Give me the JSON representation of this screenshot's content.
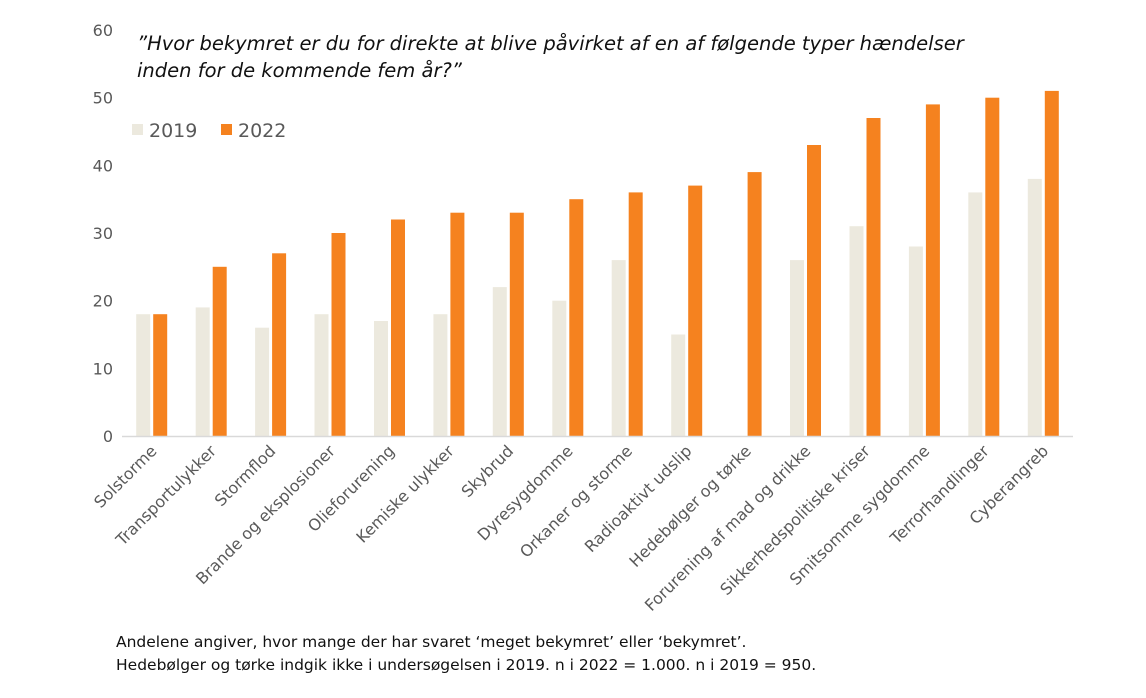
{
  "chart_data": {
    "type": "bar",
    "title_lines": [
      "”Hvor bekymret er du for direkte at blive påvirket af en af følgende typer hændelser",
      "inden for de kommende fem år?”"
    ],
    "categories": [
      "Solstorme",
      "Transportulykker",
      "Stormflod",
      "Brande og eksplosioner",
      "Olieforurening",
      "Kemiske ulykker",
      "Skybrud",
      "Dyresygdomme",
      "Orkaner og storme",
      "Radioaktivt udslip",
      "Hedebølger og tørke",
      "Forurening af mad og drikke",
      "Sikkerhedspolitiske kriser",
      "Smitsomme sygdomme",
      "Terrorhandlinger",
      "Cyberangreb"
    ],
    "series": [
      {
        "name": "2019",
        "color": "#ECE9DE",
        "values": [
          18,
          19,
          16,
          18,
          17,
          18,
          22,
          20,
          26,
          15,
          null,
          26,
          31,
          28,
          36,
          38
        ]
      },
      {
        "name": "2022",
        "color": "#F5821F",
        "values": [
          18,
          25,
          27,
          30,
          32,
          33,
          33,
          35,
          36,
          37,
          39,
          43,
          47,
          49,
          50,
          51
        ]
      }
    ],
    "ylim": [
      0,
      60
    ],
    "yticks": [
      "0",
      "10",
      "20",
      "30",
      "40",
      "50",
      "60"
    ],
    "grid": false,
    "legend_position": "top-left"
  },
  "footnotes": [
    "Andelene angiver, hvor mange der har svaret ‘meget bekymret’ eller ‘bekymret’.",
    "Hedebølger og tørke indgik ikke i undersøgelsen i 2019. n i 2022 = 1.000. n i 2019 = 950."
  ]
}
